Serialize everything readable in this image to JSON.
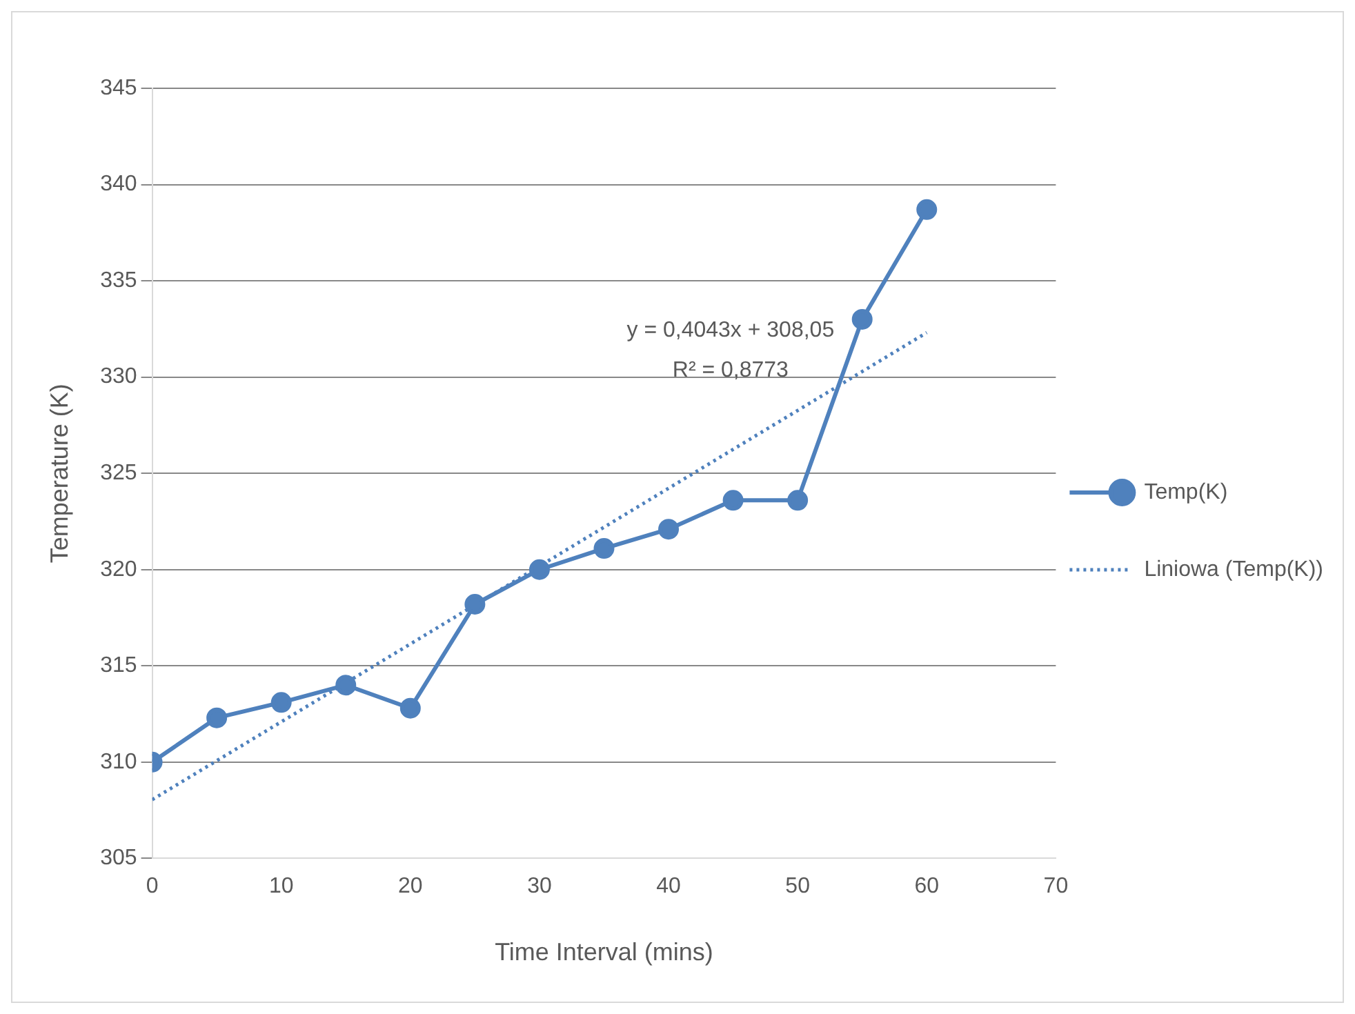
{
  "chart_data": {
    "type": "line",
    "xlabel": "Time Interval (mins)",
    "ylabel": "Temperature (K)",
    "x": [
      0,
      5,
      10,
      15,
      20,
      25,
      30,
      35,
      40,
      45,
      50,
      55,
      60
    ],
    "series": [
      {
        "name": "Temp(K)",
        "color": "#4f81bd",
        "values": [
          310,
          312.3,
          313.1,
          314,
          312.8,
          318.2,
          320,
          321.1,
          322.1,
          323.6,
          323.6,
          333,
          338.7
        ],
        "marker": "circle",
        "line_style": "solid"
      },
      {
        "name": "Liniowa (Temp(K))",
        "type": "line",
        "color": "#4f81bd",
        "x": [
          0,
          60
        ],
        "values": [
          308.05,
          332.31
        ],
        "marker": "none",
        "line_style": "dotted"
      }
    ],
    "annotations": [
      "y = 0,4043x + 308,05",
      "R² = 0,8773"
    ],
    "xlim": [
      0,
      70
    ],
    "xticks": [
      0,
      10,
      20,
      30,
      40,
      50,
      60,
      70
    ],
    "ylim": [
      305,
      345
    ],
    "yticks": [
      305,
      310,
      315,
      320,
      325,
      330,
      335,
      340,
      345
    ],
    "grid": "y",
    "legend": "right"
  }
}
